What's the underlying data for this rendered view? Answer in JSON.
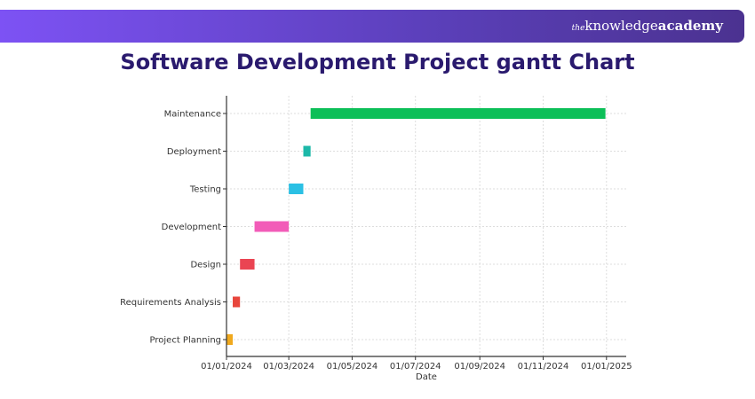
{
  "banner": {
    "brand_small": "the",
    "brand_light": "knowledge",
    "brand_bold": "academy"
  },
  "header": {
    "title": "Software Development Project gantt Chart"
  },
  "chart_data": {
    "type": "gantt",
    "title": "",
    "xlabel": "Date",
    "ylabel": "",
    "x_range": [
      "2024-01-01",
      "2025-01-20"
    ],
    "x_ticks": [
      {
        "date": "2024-01-01",
        "label": "01/01/2024"
      },
      {
        "date": "2024-03-01",
        "label": "01/03/2024"
      },
      {
        "date": "2024-05-01",
        "label": "01/05/2024"
      },
      {
        "date": "2024-07-01",
        "label": "01/07/2024"
      },
      {
        "date": "2024-09-01",
        "label": "01/09/2024"
      },
      {
        "date": "2024-11-01",
        "label": "01/11/2024"
      },
      {
        "date": "2025-01-01",
        "label": "01/01/2025"
      }
    ],
    "grid": true,
    "tasks": [
      {
        "name": "Project Planning",
        "start": "2024-01-01",
        "end": "2024-01-07",
        "color": "#f0a91e"
      },
      {
        "name": "Requirements Analysis",
        "start": "2024-01-07",
        "end": "2024-01-14",
        "color": "#e8463c"
      },
      {
        "name": "Design",
        "start": "2024-01-14",
        "end": "2024-01-28",
        "color": "#ea4452"
      },
      {
        "name": "Development",
        "start": "2024-01-28",
        "end": "2024-03-01",
        "color": "#f25cb8"
      },
      {
        "name": "Testing",
        "start": "2024-03-01",
        "end": "2024-03-15",
        "color": "#2bc0e4"
      },
      {
        "name": "Deployment",
        "start": "2024-03-15",
        "end": "2024-03-22",
        "color": "#1cb8a8"
      },
      {
        "name": "Maintenance",
        "start": "2024-03-22",
        "end": "2024-12-31",
        "color": "#0cbf58"
      }
    ]
  }
}
